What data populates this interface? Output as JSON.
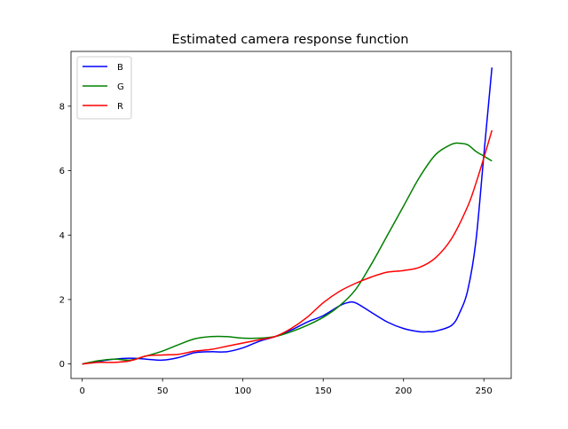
{
  "chart_data": {
    "type": "line",
    "title": "Estimated camera response function",
    "xlabel": "",
    "ylabel": "",
    "xlim": [
      -7,
      267
    ],
    "ylim": [
      -0.45,
      9.7
    ],
    "xticks": [
      0,
      50,
      100,
      150,
      200,
      250
    ],
    "yticks": [
      0,
      2,
      4,
      6,
      8
    ],
    "grid": false,
    "legend_position": "top-left",
    "series": [
      {
        "name": "B",
        "color": "#0000ff",
        "x": [
          0,
          10,
          20,
          30,
          40,
          50,
          60,
          70,
          80,
          90,
          100,
          110,
          120,
          130,
          140,
          150,
          160,
          165,
          170,
          180,
          190,
          200,
          210,
          215,
          220,
          230,
          235,
          240,
          245,
          250,
          255
        ],
        "y": [
          0,
          0.08,
          0.15,
          0.18,
          0.15,
          0.12,
          0.2,
          0.35,
          0.38,
          0.38,
          0.5,
          0.7,
          0.85,
          1.05,
          1.3,
          1.5,
          1.8,
          1.9,
          1.9,
          1.6,
          1.3,
          1.1,
          1.0,
          1.0,
          1.02,
          1.2,
          1.6,
          2.3,
          3.8,
          6.5,
          9.2
        ]
      },
      {
        "name": "G",
        "color": "#008000",
        "x": [
          0,
          10,
          20,
          30,
          40,
          50,
          60,
          70,
          80,
          90,
          100,
          110,
          120,
          130,
          140,
          150,
          160,
          170,
          180,
          190,
          200,
          210,
          220,
          230,
          235,
          240,
          245,
          250,
          255
        ],
        "y": [
          0,
          0.1,
          0.15,
          0.12,
          0.25,
          0.4,
          0.6,
          0.78,
          0.85,
          0.85,
          0.8,
          0.8,
          0.85,
          1.0,
          1.2,
          1.45,
          1.8,
          2.3,
          3.1,
          4.0,
          4.9,
          5.8,
          6.5,
          6.82,
          6.85,
          6.8,
          6.6,
          6.45,
          6.3
        ]
      },
      {
        "name": "R",
        "color": "#ff0000",
        "x": [
          0,
          10,
          20,
          30,
          40,
          50,
          60,
          70,
          80,
          90,
          100,
          110,
          120,
          130,
          140,
          150,
          160,
          170,
          180,
          190,
          200,
          210,
          220,
          230,
          240,
          245,
          250,
          255
        ],
        "y": [
          0,
          0.05,
          0.05,
          0.1,
          0.25,
          0.28,
          0.3,
          0.4,
          0.45,
          0.55,
          0.65,
          0.75,
          0.85,
          1.1,
          1.45,
          1.9,
          2.25,
          2.5,
          2.7,
          2.85,
          2.9,
          3.0,
          3.3,
          3.9,
          4.9,
          5.6,
          6.4,
          7.25
        ]
      }
    ]
  }
}
